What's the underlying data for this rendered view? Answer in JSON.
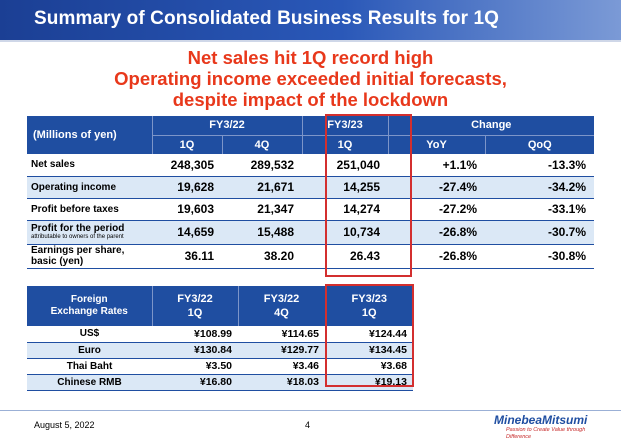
{
  "title": "Summary of Consolidated Business Results for 1Q",
  "headline": [
    "Net sales hit 1Q record high",
    "Operating income exceeded initial forecasts,",
    "despite impact of the lockdown"
  ],
  "results": {
    "unit_label": "(Millions of yen)",
    "group_fy22": "FY3/22",
    "group_fy23": "FY3/23",
    "group_change": "Change",
    "sub_1q": "1Q",
    "sub_4q": "4Q",
    "sub_1q_23": "1Q",
    "sub_yoy": "YoY",
    "sub_qoq": "QoQ",
    "rows": [
      {
        "label": "Net sales",
        "sublabel": "",
        "fy22_1q": "248,305",
        "fy22_4q": "289,532",
        "fy23_1q": "251,040",
        "yoy": "+1.1%",
        "qoq": "-13.3%"
      },
      {
        "label": "Operating income",
        "sublabel": "",
        "fy22_1q": "19,628",
        "fy22_4q": "21,671",
        "fy23_1q": "14,255",
        "yoy": "-27.4%",
        "qoq": "-34.2%"
      },
      {
        "label": "Profit before taxes",
        "sublabel": "",
        "fy22_1q": "19,603",
        "fy22_4q": "21,347",
        "fy23_1q": "14,274",
        "yoy": "-27.2%",
        "qoq": "-33.1%"
      },
      {
        "label": "Profit for the period",
        "sublabel": "attributable to owners of the parent",
        "fy22_1q": "14,659",
        "fy22_4q": "15,488",
        "fy23_1q": "10,734",
        "yoy": "-26.8%",
        "qoq": "-30.7%"
      },
      {
        "label": "Earnings per share,",
        "sublabel": "basic (yen)",
        "fy22_1q": "36.11",
        "fy22_4q": "38.20",
        "fy23_1q": "26.43",
        "yoy": "-26.8%",
        "qoq": "-30.8%"
      }
    ]
  },
  "fx": {
    "label_line1": "Foreign",
    "label_line2": "Exchange Rates",
    "col1_year": "FY3/22",
    "col1_q": "1Q",
    "col2_year": "FY3/22",
    "col2_q": "4Q",
    "col3_year": "FY3/23",
    "col3_q": "1Q",
    "rows": [
      {
        "label": "US$",
        "c1": "¥108.99",
        "c2": "¥114.65",
        "c3": "¥124.44"
      },
      {
        "label": "Euro",
        "c1": "¥130.84",
        "c2": "¥129.77",
        "c3": "¥134.45"
      },
      {
        "label": "Thai Baht",
        "c1": "¥3.50",
        "c2": "¥3.46",
        "c3": "¥3.68"
      },
      {
        "label": "Chinese RMB",
        "c1": "¥16.80",
        "c2": "¥18.03",
        "c3": "¥19.13"
      }
    ]
  },
  "footer": {
    "date": "August 5, 2022",
    "page": "4",
    "logo_name": "MinebeaMitsumi",
    "logo_tagline": "Passion to Create Value through Difference"
  },
  "colors": {
    "accent_blue": "#1f4ea1",
    "headline_red": "#e8381b",
    "highlight_red": "#d32f2f",
    "alt_row": "#dbe8f6"
  }
}
